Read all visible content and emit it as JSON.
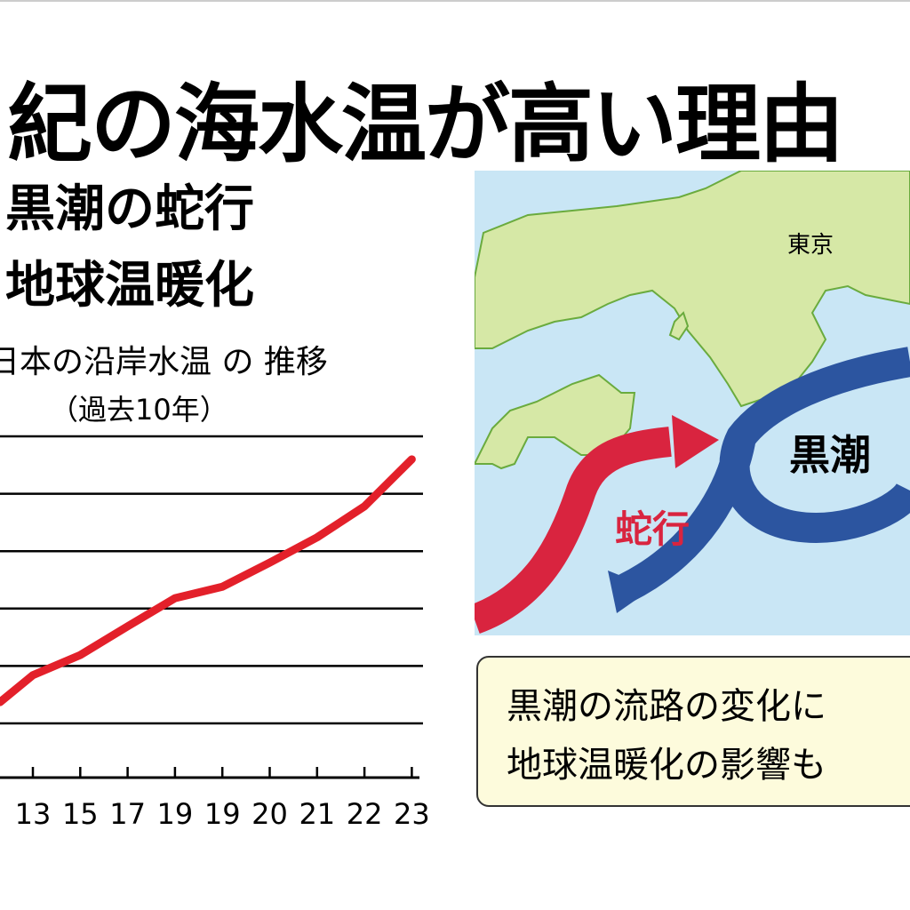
{
  "title": "紀の海水温が高い理由",
  "reasons": [
    "黒潮の蛇行",
    "地球温暖化"
  ],
  "chart_data": {
    "type": "line",
    "title": "日本の沿岸水温 の 推移",
    "subtitle": "（過去10年）",
    "categories": [
      "13",
      "15",
      "17",
      "19",
      "19",
      "20",
      "21",
      "22",
      "23"
    ],
    "values": [
      0.84,
      1.19,
      1.69,
      2.18,
      2.38,
      2.8,
      3.24,
      3.78,
      4.6
    ],
    "start_value": 0.37,
    "ylim": [
      0,
      5
    ],
    "grid": true,
    "line_color": "#e3202a"
  },
  "map": {
    "city_label": "東京",
    "kuroshio_label": "黒潮",
    "meander_label": "蛇行",
    "colors": {
      "sea": "#c9e6f5",
      "land": "#d6e8a6",
      "coast": "#6aab3e",
      "kuroshio": "#2c55a0",
      "meander": "#d9243f"
    }
  },
  "callout": {
    "lines": [
      "黒潮の流路の変化に",
      "地球温暖化の影響も"
    ]
  }
}
